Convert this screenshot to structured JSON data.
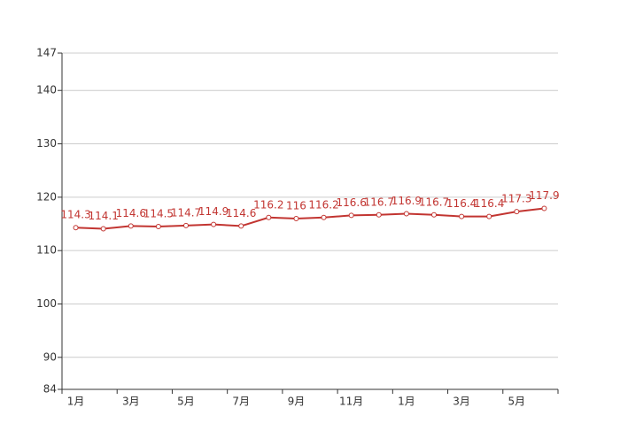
{
  "chart_data": {
    "type": "line",
    "categories": [
      "1月",
      null,
      "3月",
      null,
      "5月",
      null,
      "7月",
      null,
      "9月",
      null,
      "11月",
      null,
      "1月",
      null,
      "3月",
      null,
      "5月",
      null
    ],
    "series": [
      {
        "color": "#c23531",
        "values": [
          114.3,
          114.1,
          114.6,
          114.5,
          114.7,
          114.9,
          114.6,
          116.2,
          116,
          116.2,
          116.6,
          116.7,
          116.9,
          116.7,
          116.4,
          116.4,
          117.3,
          117.9
        ]
      }
    ],
    "ylim": [
      84,
      147
    ],
    "yticks": [
      84,
      90,
      100,
      110,
      120,
      130,
      140,
      147
    ],
    "grid": true
  }
}
